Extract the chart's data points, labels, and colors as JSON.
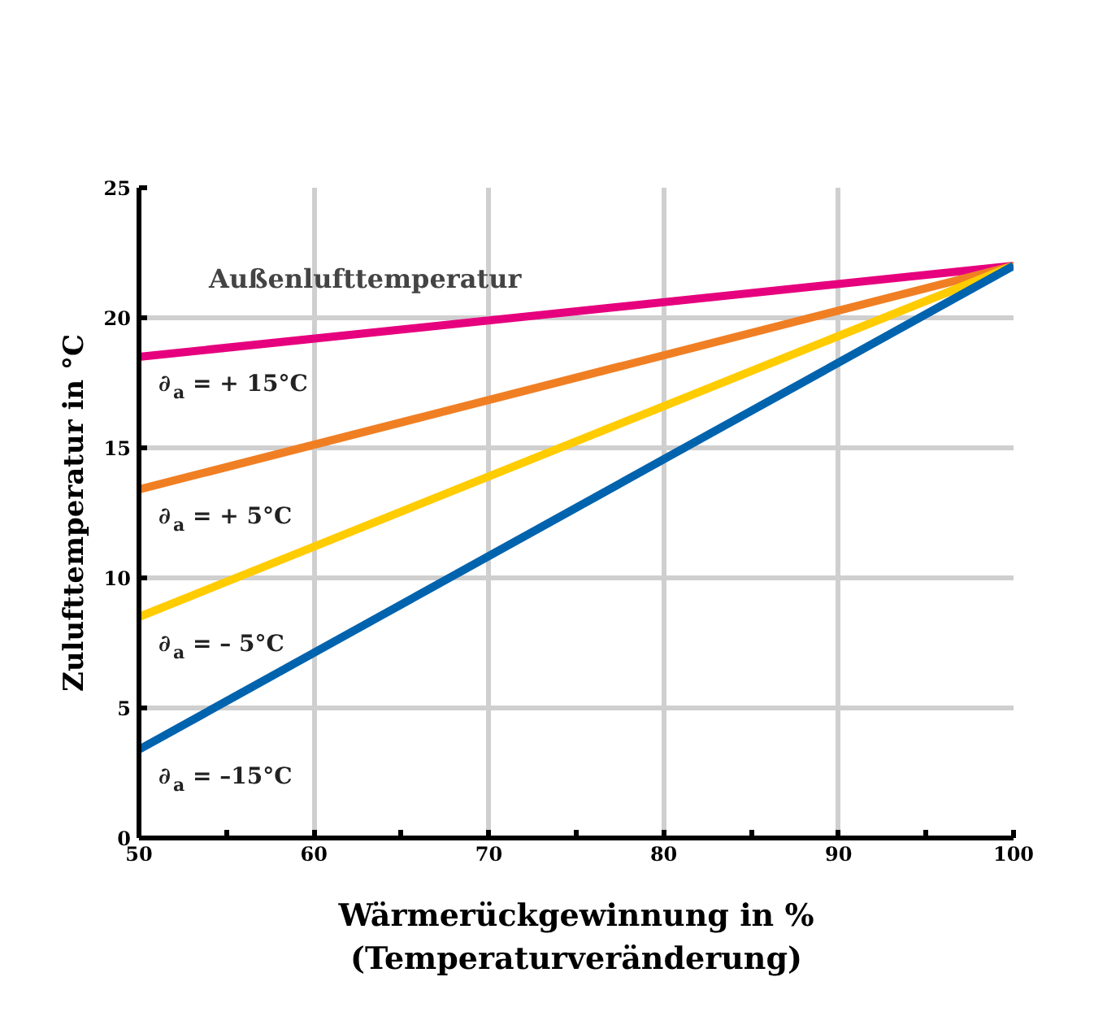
{
  "chart_data": {
    "type": "line",
    "xlabel": "Wärmerückgewinnung in %\n(Temperaturveränderung)",
    "ylabel": "Zulufttemperatur in °C",
    "x": [
      50,
      100
    ],
    "series": [
      {
        "name": "∂$_{a}$ = + 15°C",
        "color": "#e6007e",
        "values": [
          18.5,
          22
        ]
      },
      {
        "name": "∂$_{a}$ = + 5°C",
        "color": "#f07f24",
        "values": [
          13.4,
          22
        ]
      },
      {
        "name": "∂$_{a}$ = – 5°C",
        "color": "#ffcc00",
        "values": [
          8.5,
          22
        ]
      },
      {
        "name": "∂$_{a}$ = –15°C",
        "color": "#0063ae",
        "values": [
          3.4,
          22
        ]
      }
    ],
    "xlim": [
      50,
      100
    ],
    "xticks": [
      50,
      60,
      70,
      80,
      90,
      100
    ],
    "ylim": [
      0,
      25
    ],
    "yticks": [
      0,
      5,
      10,
      15,
      20,
      25
    ],
    "grid": true,
    "marker": "none",
    "line_style": "solid",
    "annotations": [
      "Außenlufttemperatur"
    ]
  }
}
